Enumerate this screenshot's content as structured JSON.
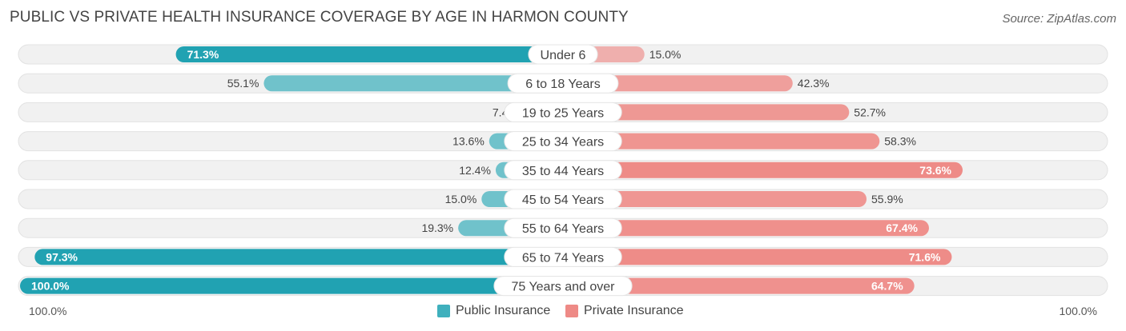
{
  "header": {
    "title": "PUBLIC VS PRIVATE HEALTH INSURANCE COVERAGE BY AGE IN HARMON COUNTY",
    "source": "Source: ZipAtlas.com"
  },
  "colors": {
    "public": "#3fb0bd",
    "public_dark": "#21a2b2",
    "private": "#ee8a86",
    "private_light": "#f3a9a6",
    "track": "#f1f1f1"
  },
  "axis": {
    "left_label": "100.0%",
    "right_label": "100.0%"
  },
  "legend": {
    "public_label": "Public Insurance",
    "private_label": "Private Insurance"
  },
  "chart_data": {
    "type": "bar",
    "orientation": "horizontal-diverging",
    "title": "PUBLIC VS PRIVATE HEALTH INSURANCE COVERAGE BY AGE IN HARMON COUNTY",
    "categories": [
      "Under 6",
      "6 to 18 Years",
      "19 to 25 Years",
      "25 to 34 Years",
      "35 to 44 Years",
      "45 to 54 Years",
      "55 to 64 Years",
      "65 to 74 Years",
      "75 Years and over"
    ],
    "series": [
      {
        "name": "Public Insurance",
        "values": [
          71.3,
          55.1,
          7.4,
          13.6,
          12.4,
          15.0,
          19.3,
          97.3,
          100.0
        ],
        "labels": [
          "71.3%",
          "55.1%",
          "7.4%",
          "13.6%",
          "12.4%",
          "15.0%",
          "19.3%",
          "97.3%",
          "100.0%"
        ]
      },
      {
        "name": "Private Insurance",
        "values": [
          15.0,
          42.3,
          52.7,
          58.3,
          73.6,
          55.9,
          67.4,
          71.6,
          64.7
        ],
        "labels": [
          "15.0%",
          "42.3%",
          "52.7%",
          "58.3%",
          "73.6%",
          "55.9%",
          "67.4%",
          "71.6%",
          "64.7%"
        ]
      }
    ],
    "xlim": [
      -100,
      100
    ],
    "legend_position": "bottom-center"
  }
}
